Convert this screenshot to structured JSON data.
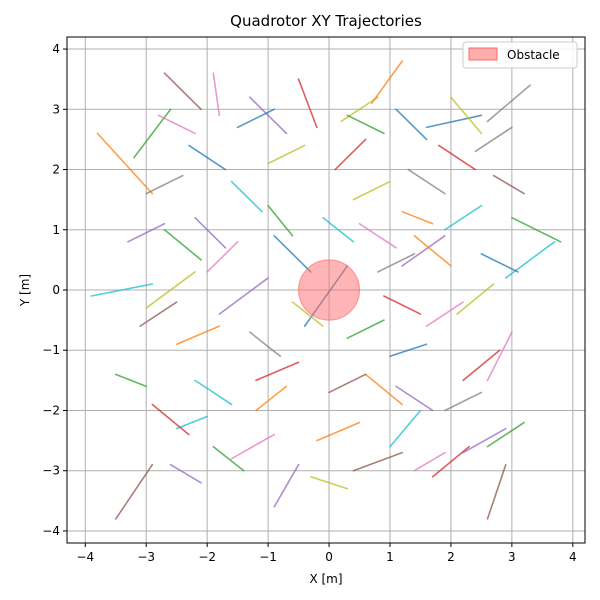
{
  "chart_data": {
    "type": "line",
    "title": "Quadrotor XY Trajectories",
    "xlabel": "X [m]",
    "ylabel": "Y [m]",
    "xlim": [
      -4.3,
      4.2
    ],
    "ylim": [
      -4.2,
      4.2
    ],
    "xticks": [
      "−4",
      "−3",
      "−2",
      "−1",
      "0",
      "1",
      "2",
      "3",
      "4"
    ],
    "yticks": [
      "−4",
      "−3",
      "−2",
      "−1",
      "0",
      "1",
      "2",
      "3",
      "4"
    ],
    "grid": true,
    "legend": {
      "position": "top-right",
      "entries": [
        "Obstacle"
      ]
    },
    "obstacle": {
      "center": [
        0.0,
        0.0
      ],
      "radius": 0.5,
      "color": "#ff6b6b"
    },
    "series_palette": [
      "#1f77b4",
      "#ff7f0e",
      "#2ca02c",
      "#d62728",
      "#9467bd",
      "#8c564b",
      "#e377c2",
      "#7f7f7f",
      "#bcbd22",
      "#17becf"
    ],
    "segments": [
      [
        -3.8,
        2.6,
        -2.9,
        1.6,
        1
      ],
      [
        -3.2,
        2.2,
        -2.6,
        3.0,
        2
      ],
      [
        -2.7,
        3.6,
        -2.1,
        3.0,
        5
      ],
      [
        -1.9,
        3.6,
        -1.8,
        2.9,
        6
      ],
      [
        -1.3,
        3.2,
        -0.7,
        2.6,
        4
      ],
      [
        -0.5,
        3.5,
        -0.2,
        2.7,
        3
      ],
      [
        0.2,
        2.8,
        0.8,
        3.2,
        8
      ],
      [
        0.7,
        3.1,
        1.2,
        3.8,
        1
      ],
      [
        1.1,
        3.0,
        1.6,
        2.5,
        0
      ],
      [
        1.6,
        2.7,
        2.5,
        2.9,
        0
      ],
      [
        2.0,
        3.2,
        2.5,
        2.6,
        8
      ],
      [
        2.4,
        2.3,
        3.0,
        2.7,
        7
      ],
      [
        2.6,
        2.8,
        3.3,
        3.4,
        7
      ],
      [
        -3.9,
        -0.1,
        -2.9,
        0.1,
        9
      ],
      [
        -3.5,
        -1.4,
        -3.0,
        -1.6,
        2
      ],
      [
        -3.5,
        -3.8,
        -2.9,
        -2.9,
        5
      ],
      [
        -3.0,
        -0.3,
        -2.2,
        0.3,
        8
      ],
      [
        -2.7,
        1.0,
        -2.1,
        0.5,
        2
      ],
      [
        -2.5,
        -2.3,
        -2.0,
        -2.1,
        9
      ],
      [
        -1.8,
        -0.4,
        -1.0,
        0.2,
        4
      ],
      [
        -1.2,
        -1.5,
        -0.5,
        -1.2,
        3
      ],
      [
        -0.9,
        0.9,
        -0.3,
        0.3,
        0
      ],
      [
        -0.4,
        -0.6,
        0.3,
        0.4,
        0
      ],
      [
        0.4,
        1.5,
        1.0,
        1.8,
        8
      ],
      [
        0.6,
        -1.4,
        1.2,
        -1.9,
        1
      ],
      [
        1.2,
        0.4,
        1.9,
        0.9,
        4
      ],
      [
        1.6,
        -0.6,
        2.2,
        -0.2,
        6
      ],
      [
        2.2,
        -1.5,
        2.8,
        -1.0,
        3
      ],
      [
        2.6,
        -2.6,
        3.2,
        -2.2,
        2
      ],
      [
        2.9,
        0.2,
        3.7,
        0.8,
        9
      ],
      [
        3.0,
        -0.7,
        2.6,
        -1.5,
        6
      ],
      [
        3.0,
        1.2,
        3.8,
        0.8,
        2
      ],
      [
        -1.6,
        -2.8,
        -0.9,
        -2.4,
        6
      ],
      [
        -0.9,
        -3.6,
        -0.5,
        -2.9,
        4
      ],
      [
        -0.2,
        -2.5,
        0.5,
        -2.2,
        1
      ],
      [
        0.4,
        -3.0,
        1.2,
        -2.7,
        5
      ],
      [
        1.0,
        -2.6,
        1.5,
        -2.0,
        9
      ],
      [
        1.7,
        -3.1,
        2.3,
        -2.6,
        3
      ],
      [
        2.2,
        -2.7,
        2.9,
        -2.3,
        4
      ],
      [
        2.6,
        -3.8,
        2.9,
        -2.9,
        5
      ],
      [
        -2.3,
        2.4,
        -1.7,
        2.0,
        0
      ],
      [
        -1.0,
        2.1,
        -0.4,
        2.4,
        8
      ],
      [
        0.1,
        2.0,
        0.6,
        2.5,
        3
      ],
      [
        1.3,
        2.0,
        1.9,
        1.6,
        7
      ],
      [
        1.9,
        1.0,
        2.5,
        1.4,
        9
      ],
      [
        -2.2,
        1.2,
        -1.7,
        0.7,
        4
      ],
      [
        -1.0,
        1.4,
        -0.6,
        0.9,
        2
      ],
      [
        0.5,
        1.1,
        1.1,
        0.7,
        6
      ],
      [
        1.4,
        0.9,
        2.0,
        0.4,
        1
      ],
      [
        -2.5,
        -0.9,
        -1.8,
        -0.6,
        1
      ],
      [
        -1.3,
        -0.7,
        -0.8,
        -1.1,
        7
      ],
      [
        0.3,
        -0.8,
        0.9,
        -0.5,
        2
      ],
      [
        1.0,
        -1.1,
        1.6,
        -0.9,
        0
      ],
      [
        2.1,
        -0.4,
        2.7,
        0.1,
        8
      ],
      [
        -2.9,
        -1.9,
        -2.3,
        -2.4,
        3
      ],
      [
        -2.2,
        -1.5,
        -1.6,
        -1.9,
        9
      ],
      [
        -1.2,
        -2.0,
        -0.7,
        -1.6,
        1
      ],
      [
        0.0,
        -1.7,
        0.6,
        -1.4,
        5
      ],
      [
        1.1,
        -1.6,
        1.7,
        -2.0,
        4
      ],
      [
        1.9,
        -2.0,
        2.5,
        -1.7,
        7
      ],
      [
        -2.8,
        2.9,
        -2.2,
        2.6,
        6
      ],
      [
        -1.5,
        2.7,
        -0.9,
        3.0,
        0
      ],
      [
        0.3,
        2.9,
        0.9,
        2.6,
        2
      ],
      [
        1.8,
        2.4,
        2.4,
        2.0,
        3
      ],
      [
        -3.3,
        0.8,
        -2.7,
        1.1,
        4
      ],
      [
        -3.1,
        -0.6,
        -2.5,
        -0.2,
        5
      ],
      [
        -2.0,
        0.3,
        -1.5,
        0.8,
        6
      ],
      [
        -1.6,
        1.8,
        -1.1,
        1.3,
        9
      ],
      [
        0.8,
        0.3,
        1.4,
        0.6,
        7
      ],
      [
        2.5,
        0.6,
        3.1,
        0.3,
        0
      ],
      [
        -0.6,
        -0.2,
        -0.1,
        -0.6,
        8
      ],
      [
        0.9,
        -0.1,
        1.5,
        -0.4,
        3
      ],
      [
        -1.9,
        -2.6,
        -1.4,
        -3.0,
        2
      ],
      [
        -0.3,
        -3.1,
        0.3,
        -3.3,
        8
      ],
      [
        1.4,
        -3.0,
        1.9,
        -2.7,
        6
      ],
      [
        -2.6,
        -2.9,
        -2.1,
        -3.2,
        4
      ],
      [
        -3.0,
        1.6,
        -2.4,
        1.9,
        7
      ],
      [
        1.2,
        1.3,
        1.7,
        1.1,
        1
      ],
      [
        2.7,
        1.9,
        3.2,
        1.6,
        5
      ],
      [
        -0.1,
        1.2,
        0.4,
        0.8,
        9
      ]
    ]
  }
}
